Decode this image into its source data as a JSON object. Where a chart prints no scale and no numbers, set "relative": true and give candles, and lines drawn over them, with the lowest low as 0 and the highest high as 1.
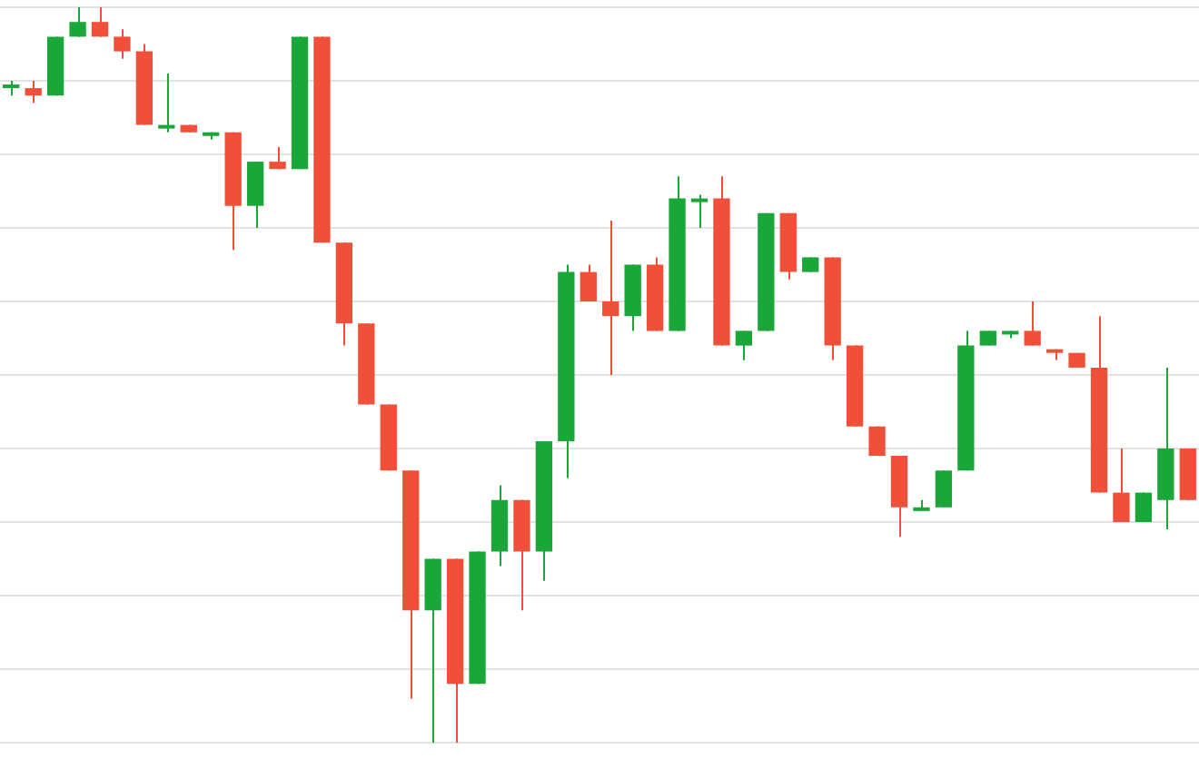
{
  "chart_data": {
    "type": "candlestick",
    "relative": true,
    "grid": "y",
    "categories": [
      null,
      null,
      null,
      null,
      null,
      null,
      null,
      null,
      null,
      null,
      null,
      null,
      null,
      null,
      null,
      null,
      null,
      null,
      null,
      null,
      null,
      null,
      null,
      null,
      null,
      null,
      null,
      null,
      null,
      null,
      null,
      null,
      null,
      null,
      null,
      null,
      null,
      null,
      null,
      null,
      null,
      null,
      null,
      null,
      null,
      null,
      null,
      null,
      null,
      null,
      null,
      null,
      null,
      null
    ],
    "ohlc": [
      [
        0.89,
        0.9,
        0.88,
        0.895
      ],
      [
        0.89,
        0.9,
        0.87,
        0.88
      ],
      [
        0.88,
        0.96,
        0.88,
        0.96
      ],
      [
        0.96,
        1.0,
        0.96,
        0.98
      ],
      [
        0.98,
        1.0,
        0.96,
        0.96
      ],
      [
        0.96,
        0.97,
        0.93,
        0.94
      ],
      [
        0.94,
        0.95,
        0.84,
        0.84
      ],
      [
        0.835,
        0.91,
        0.83,
        0.84
      ],
      [
        0.84,
        0.84,
        0.83,
        0.83
      ],
      [
        0.825,
        0.83,
        0.82,
        0.83
      ],
      [
        0.83,
        0.83,
        0.67,
        0.73
      ],
      [
        0.73,
        0.79,
        0.7,
        0.79
      ],
      [
        0.79,
        0.81,
        0.78,
        0.78
      ],
      [
        0.78,
        0.96,
        0.78,
        0.96
      ],
      [
        0.96,
        0.96,
        0.68,
        0.68
      ],
      [
        0.68,
        0.68,
        0.54,
        0.57
      ],
      [
        0.57,
        0.57,
        0.46,
        0.46
      ],
      [
        0.46,
        0.46,
        0.37,
        0.37
      ],
      [
        0.37,
        0.37,
        0.06,
        0.18
      ],
      [
        0.18,
        0.25,
        0,
        0.25
      ],
      [
        0.25,
        0.25,
        0,
        0.08
      ],
      [
        0.08,
        0.26,
        0.08,
        0.26
      ],
      [
        0.26,
        0.35,
        0.24,
        0.33
      ],
      [
        0.33,
        0.33,
        0.18,
        0.26
      ],
      [
        0.26,
        0.41,
        0.22,
        0.41
      ],
      [
        0.41,
        0.65,
        0.36,
        0.64
      ],
      [
        0.64,
        0.65,
        0.6,
        0.6
      ],
      [
        0.6,
        0.71,
        0.5,
        0.58
      ],
      [
        0.58,
        0.65,
        0.56,
        0.65
      ],
      [
        0.65,
        0.66,
        0.56,
        0.56
      ],
      [
        0.56,
        0.77,
        0.56,
        0.74
      ],
      [
        0.735,
        0.745,
        0.7,
        0.74
      ],
      [
        0.74,
        0.77,
        0.54,
        0.54
      ],
      [
        0.54,
        0.56,
        0.52,
        0.56
      ],
      [
        0.56,
        0.72,
        0.56,
        0.72
      ],
      [
        0.72,
        0.72,
        0.63,
        0.64
      ],
      [
        0.64,
        0.66,
        0.64,
        0.66
      ],
      [
        0.66,
        0.66,
        0.52,
        0.54
      ],
      [
        0.54,
        0.54,
        0.43,
        0.43
      ],
      [
        0.43,
        0.43,
        0.39,
        0.39
      ],
      [
        0.39,
        0.39,
        0.28,
        0.32
      ],
      [
        0.315,
        0.33,
        0.315,
        0.32
      ],
      [
        0.32,
        0.37,
        0.32,
        0.37
      ],
      [
        0.37,
        0.56,
        0.37,
        0.54
      ],
      [
        0.54,
        0.56,
        0.54,
        0.56
      ],
      [
        0.555,
        0.56,
        0.55,
        0.558
      ],
      [
        0.56,
        0.6,
        0.54,
        0.54
      ],
      [
        0.535,
        0.535,
        0.52,
        0.53
      ],
      [
        0.53,
        0.53,
        0.51,
        0.51
      ],
      [
        0.51,
        0.58,
        0.34,
        0.34
      ],
      [
        0.34,
        0.4,
        0.3,
        0.3
      ],
      [
        0.3,
        0.34,
        0.3,
        0.34
      ],
      [
        0.33,
        0.51,
        0.29,
        0.4
      ],
      [
        0.4,
        0.4,
        0.33,
        0.33
      ]
    ],
    "colors": [
      "#1ba63a",
      "#f0503a",
      "#1ba63a",
      "#1ba63a",
      "#f0503a",
      "#f0503a",
      "#f0503a",
      "#1ba63a",
      "#f0503a",
      "#1ba63a",
      "#f0503a",
      "#1ba63a",
      "#f0503a",
      "#1ba63a",
      "#f0503a",
      "#f0503a",
      "#f0503a",
      "#f0503a",
      "#f0503a",
      "#1ba63a",
      "#f0503a",
      "#1ba63a",
      "#1ba63a",
      "#f0503a",
      "#1ba63a",
      "#1ba63a",
      "#f0503a",
      "#f0503a",
      "#1ba63a",
      "#f0503a",
      "#1ba63a",
      "#1ba63a",
      "#f0503a",
      "#1ba63a",
      "#1ba63a",
      "#f0503a",
      "#1ba63a",
      "#f0503a",
      "#f0503a",
      "#f0503a",
      "#f0503a",
      "#1ba63a",
      "#1ba63a",
      "#1ba63a",
      "#1ba63a",
      "#1ba63a",
      "#f0503a",
      "#f0503a",
      "#f0503a",
      "#f0503a",
      "#f0503a",
      "#1ba63a",
      "#1ba63a",
      "#f0503a"
    ]
  }
}
